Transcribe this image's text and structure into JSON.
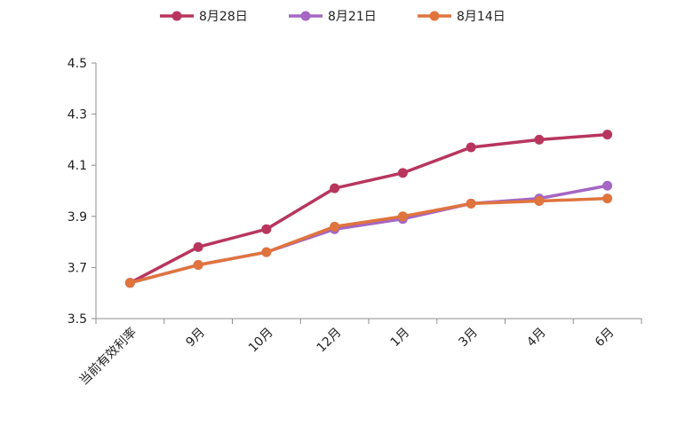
{
  "chart_data": {
    "type": "line",
    "categories": [
      "当前有效利率",
      "9月",
      "10月",
      "12月",
      "1月",
      "3月",
      "4月",
      "6月"
    ],
    "series": [
      {
        "name": "8月28日",
        "color": "#B8365E",
        "values": [
          3.64,
          3.78,
          3.85,
          4.01,
          4.07,
          4.17,
          4.2,
          4.22
        ]
      },
      {
        "name": "8月21日",
        "color": "#A566C4",
        "values": [
          3.64,
          3.71,
          3.76,
          3.85,
          3.89,
          3.95,
          3.97,
          4.02
        ]
      },
      {
        "name": "8月14日",
        "color": "#E0743E",
        "values": [
          3.64,
          3.71,
          3.76,
          3.86,
          3.9,
          3.95,
          3.96,
          3.97
        ]
      }
    ],
    "yticks": [
      "3.5",
      "3.7",
      "3.9",
      "4.1",
      "4.3",
      "4.5"
    ],
    "ylim": [
      3.5,
      4.5
    ],
    "grid": false,
    "legend_position": "top"
  }
}
